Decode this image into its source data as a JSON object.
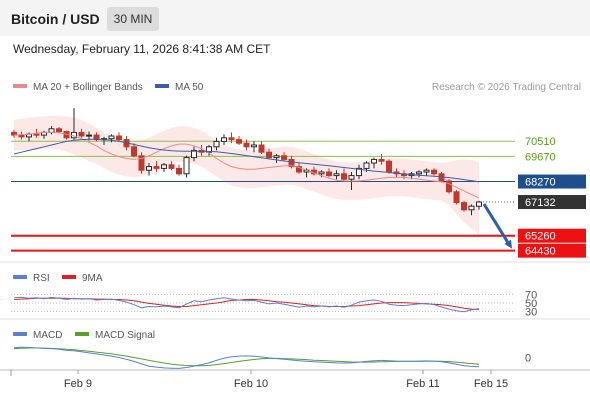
{
  "header": {
    "title": "Bitcoin / USD",
    "timeframe": "30 MIN",
    "datetime": "Wednesday, February 11, 2026 8:41:38 AM CET"
  },
  "legend": {
    "ma20_bb": "MA 20 + Bollinger Bands",
    "ma50": "MA 50",
    "credit": "Research © 2026 Trading Central"
  },
  "colors": {
    "candle_up": "#2a2a2a",
    "candle_down": "#c0392b",
    "ma20": "#e88a8a",
    "ma50": "#3b5ea8",
    "band_fill": "#fde2e2",
    "resistance": "#8bbf4a",
    "pivot": "#1f4e8c",
    "support": "#ee1111",
    "current": "#333333",
    "rsi": "#5b7fd6",
    "rsi_ma": "#dd2222",
    "macd": "#5b7fd6",
    "macd_signal": "#55a02a",
    "arrow": "#2f5fa8"
  },
  "levels": [
    {
      "value": 70510,
      "label": "70510",
      "type": "resistance"
    },
    {
      "value": 69670,
      "label": "69670",
      "type": "resistance"
    },
    {
      "value": 68270,
      "label": "68270",
      "type": "pivot"
    },
    {
      "value": 67132,
      "label": "67132",
      "type": "current"
    },
    {
      "value": 65260,
      "label": "65260",
      "type": "support"
    },
    {
      "value": 64430,
      "label": "64430",
      "type": "support"
    }
  ],
  "rsi_panel": {
    "title": "RSI",
    "ma_title": "9MA",
    "levels": [
      "70",
      "50",
      "30"
    ]
  },
  "macd_panel": {
    "title": "MACD",
    "signal_title": "MACD Signal",
    "zero_label": "0"
  },
  "x_axis": {
    "labels": [
      "Feb 9",
      "Feb 10",
      "Feb 11",
      "Feb 15"
    ]
  },
  "chart_data": {
    "type": "candlestick",
    "price_range": [
      63800,
      72800
    ],
    "ma20": [
      70850,
      70880,
      70900,
      70950,
      71000,
      71000,
      70980,
      70900,
      70800,
      70650,
      70450,
      70250,
      70000,
      69800,
      69650,
      69550,
      69500,
      69550,
      69700,
      69900,
      70100,
      70250,
      70350,
      70350,
      70250,
      70100,
      69850,
      69550,
      69300,
      69100,
      69000,
      68950,
      68950,
      69000,
      69050,
      69100,
      69150,
      69150,
      69050,
      68900,
      68750,
      68600,
      68450,
      68350,
      68300,
      68300,
      68300,
      68350,
      68400,
      68450,
      68500,
      68500,
      68500,
      68450,
      68400,
      68350,
      68300,
      68250,
      68150,
      67950,
      67750,
      67550,
      67350
    ],
    "ma50": [
      69800,
      69900,
      70000,
      70100,
      70200,
      70300,
      70400,
      70500,
      70560,
      70600,
      70620,
      70620,
      70600,
      70560,
      70500,
      70420,
      70330,
      70240,
      70150,
      70080,
      70020,
      69980,
      69960,
      69950,
      69950,
      69950,
      69940,
      69920,
      69880,
      69830,
      69770,
      69710,
      69650,
      69590,
      69530,
      69470,
      69410,
      69360,
      69310,
      69270,
      69230,
      69190,
      69150,
      69100,
      69050,
      69000,
      68950,
      68900,
      68850,
      68810,
      68770,
      68730,
      68690,
      68650,
      68620,
      68590,
      68560,
      68530,
      68490,
      68440,
      68380,
      68320,
      68250
    ],
    "bb_upper": [
      71700,
      71760,
      71820,
      71870,
      71900,
      71920,
      71910,
      71880,
      71830,
      71700,
      71500,
      71250,
      71000,
      70800,
      70650,
      70550,
      70500,
      70550,
      70700,
      70900,
      71100,
      71250,
      71350,
      71350,
      71250,
      71100,
      70850,
      70550,
      70300,
      70150,
      70050,
      70000,
      70000,
      70050,
      70100,
      70150,
      70200,
      70200,
      70100,
      69950,
      69800,
      69650,
      69500,
      69400,
      69350,
      69350,
      69350,
      69400,
      69450,
      69500,
      69550,
      69550,
      69550,
      69500,
      69450,
      69400,
      69350,
      69300,
      69350,
      69450,
      69500,
      69450,
      69350
    ],
    "bb_lower": [
      70000,
      70000,
      70000,
      70030,
      70100,
      70080,
      70050,
      69920,
      69770,
      69600,
      69400,
      69250,
      69000,
      68800,
      68650,
      68550,
      68500,
      68550,
      68700,
      68900,
      69100,
      69250,
      69350,
      69350,
      69250,
      69100,
      68850,
      68550,
      68300,
      68050,
      67950,
      67900,
      67900,
      67950,
      68000,
      68050,
      68100,
      68100,
      68000,
      67850,
      67700,
      67550,
      67400,
      67300,
      67250,
      67250,
      67250,
      67300,
      67350,
      67400,
      67450,
      67450,
      67450,
      67400,
      67350,
      67300,
      67250,
      67200,
      66950,
      66450,
      66000,
      65650,
      65350
    ],
    "candles": [
      [
        71000,
        71150,
        70700,
        70850
      ],
      [
        70850,
        71050,
        70600,
        70750
      ],
      [
        70750,
        71000,
        70500,
        70900
      ],
      [
        70900,
        71200,
        70700,
        70850
      ],
      [
        70850,
        71100,
        70650,
        71000
      ],
      [
        71000,
        71350,
        70900,
        71200
      ],
      [
        71200,
        71300,
        70950,
        71050
      ],
      [
        71050,
        71100,
        70600,
        70700
      ],
      [
        70700,
        72350,
        70600,
        71000
      ],
      [
        71000,
        71200,
        70700,
        70800
      ],
      [
        70800,
        71050,
        70550,
        70850
      ],
      [
        70850,
        71000,
        70500,
        70600
      ],
      [
        70600,
        70750,
        70300,
        70650
      ],
      [
        70650,
        70900,
        70450,
        70800
      ],
      [
        70800,
        71000,
        70500,
        70600
      ],
      [
        70600,
        70800,
        70000,
        70200
      ],
      [
        70200,
        70400,
        69600,
        69700
      ],
      [
        69700,
        69900,
        68700,
        68900
      ],
      [
        68900,
        69300,
        68600,
        69100
      ],
      [
        69100,
        69400,
        68800,
        69000
      ],
      [
        69000,
        69300,
        68800,
        69200
      ],
      [
        69200,
        69400,
        68900,
        69000
      ],
      [
        69000,
        69200,
        68600,
        68700
      ],
      [
        68700,
        69700,
        68500,
        69600
      ],
      [
        69600,
        70200,
        69400,
        70000
      ],
      [
        70000,
        70300,
        69700,
        69900
      ],
      [
        69900,
        70300,
        69700,
        70200
      ],
      [
        70200,
        70700,
        70000,
        70500
      ],
      [
        70500,
        70900,
        70300,
        70700
      ],
      [
        70700,
        71000,
        70400,
        70600
      ],
      [
        70600,
        70800,
        70300,
        70400
      ],
      [
        70400,
        70600,
        70000,
        70200
      ],
      [
        70200,
        70500,
        69900,
        70300
      ],
      [
        70300,
        70500,
        69800,
        69900
      ],
      [
        69900,
        70100,
        69500,
        69600
      ],
      [
        69600,
        69800,
        69300,
        69700
      ],
      [
        69700,
        69900,
        69400,
        69500
      ],
      [
        69500,
        69700,
        69000,
        69100
      ],
      [
        69100,
        69300,
        68700,
        68800
      ],
      [
        68800,
        69000,
        68500,
        68900
      ],
      [
        68900,
        69100,
        68600,
        68700
      ],
      [
        68700,
        68900,
        68500,
        68800
      ],
      [
        68800,
        69000,
        68500,
        68600
      ],
      [
        68600,
        68900,
        68400,
        68700
      ],
      [
        68700,
        69000,
        68300,
        68400
      ],
      [
        68400,
        68800,
        67800,
        68600
      ],
      [
        68600,
        69200,
        68400,
        69000
      ],
      [
        69000,
        69400,
        68800,
        69300
      ],
      [
        69300,
        69600,
        69000,
        69500
      ],
      [
        69500,
        69800,
        69200,
        69400
      ],
      [
        69400,
        69500,
        68700,
        68800
      ],
      [
        68800,
        69000,
        68500,
        68700
      ],
      [
        68700,
        68900,
        68400,
        68600
      ],
      [
        68600,
        68800,
        68400,
        68700
      ],
      [
        68700,
        68900,
        68500,
        68800
      ],
      [
        68800,
        69000,
        68600,
        68900
      ],
      [
        68900,
        69000,
        68600,
        68700
      ],
      [
        68700,
        68800,
        68200,
        68300
      ],
      [
        68300,
        68400,
        67600,
        67700
      ],
      [
        67700,
        67800,
        67000,
        67100
      ],
      [
        67100,
        67200,
        66600,
        66700
      ],
      [
        66700,
        67000,
        66400,
        66900
      ],
      [
        66900,
        67200,
        66700,
        67132
      ]
    ],
    "rsi": [
      62,
      63,
      61,
      62,
      60,
      63,
      61,
      58,
      61,
      59,
      60,
      57,
      58,
      59,
      56,
      52,
      46,
      39,
      42,
      41,
      43,
      41,
      39,
      48,
      55,
      53,
      57,
      60,
      62,
      59,
      57,
      55,
      56,
      52,
      48,
      50,
      47,
      44,
      40,
      43,
      41,
      43,
      41,
      43,
      40,
      45,
      52,
      55,
      57,
      54,
      47,
      45,
      44,
      46,
      48,
      49,
      46,
      41,
      36,
      32,
      30,
      34,
      37
    ],
    "rsi_ma": [
      58,
      59,
      60,
      61,
      61,
      61,
      61,
      61,
      60,
      60,
      60,
      59,
      59,
      58,
      58,
      57,
      55,
      52,
      49,
      47,
      45,
      43,
      42,
      42,
      44,
      46,
      48,
      50,
      53,
      56,
      57,
      58,
      58,
      57,
      55,
      53,
      52,
      50,
      48,
      46,
      44,
      43,
      42,
      42,
      42,
      43,
      44,
      46,
      48,
      50,
      51,
      51,
      51,
      50,
      49,
      48,
      47,
      46,
      44,
      41,
      38,
      36,
      35
    ],
    "macd": [
      5.5,
      5.8,
      5.6,
      5.4,
      5.2,
      5.0,
      4.6,
      4.0,
      3.8,
      3.2,
      2.6,
      2.0,
      1.4,
      0.8,
      0.0,
      -1.0,
      -2.2,
      -3.6,
      -4.8,
      -5.4,
      -5.8,
      -6.0,
      -6.1,
      -5.6,
      -4.8,
      -4.0,
      -3.0,
      -1.6,
      -0.4,
      0.4,
      0.8,
      0.9,
      0.7,
      0.3,
      -0.2,
      -0.6,
      -1.0,
      -1.4,
      -1.8,
      -2.1,
      -2.4,
      -2.6,
      -2.8,
      -3.0,
      -3.1,
      -3.0,
      -2.6,
      -2.2,
      -1.8,
      -1.6,
      -1.8,
      -2.0,
      -2.1,
      -2.1,
      -2.0,
      -1.9,
      -2.0,
      -2.4,
      -3.0,
      -3.8,
      -4.6,
      -5.0,
      -5.2
    ],
    "macd_signal": [
      5.0,
      5.2,
      5.3,
      5.3,
      5.2,
      5.1,
      4.9,
      4.6,
      4.3,
      3.9,
      3.5,
      3.0,
      2.5,
      2.0,
      1.4,
      0.8,
      0.0,
      -0.8,
      -1.6,
      -2.4,
      -3.1,
      -3.7,
      -4.2,
      -4.5,
      -4.6,
      -4.6,
      -4.4,
      -4.0,
      -3.4,
      -2.8,
      -2.2,
      -1.6,
      -1.1,
      -0.7,
      -0.5,
      -0.5,
      -0.6,
      -0.8,
      -1.0,
      -1.2,
      -1.5,
      -1.7,
      -1.9,
      -2.1,
      -2.3,
      -2.5,
      -2.6,
      -2.6,
      -2.5,
      -2.4,
      -2.3,
      -2.2,
      -2.2,
      -2.2,
      -2.2,
      -2.1,
      -2.1,
      -2.1,
      -2.3,
      -2.6,
      -3.0,
      -3.4,
      -3.8
    ]
  }
}
